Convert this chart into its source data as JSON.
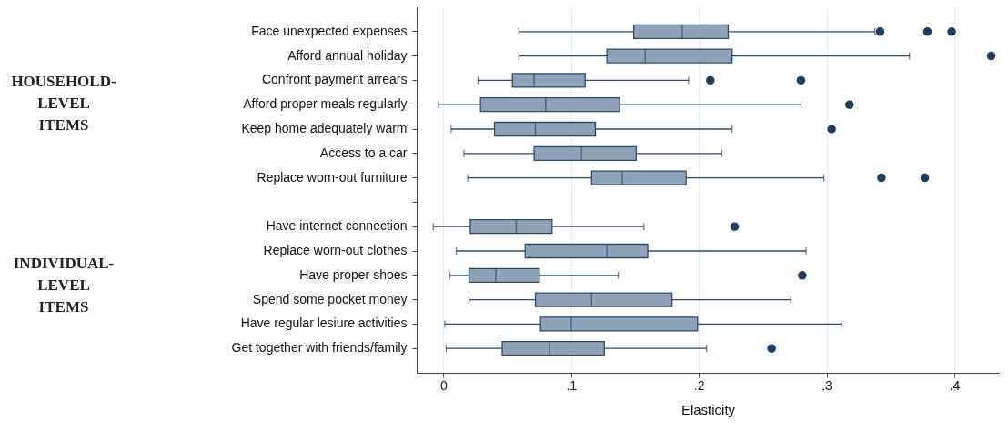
{
  "chart_data": {
    "type": "box",
    "xlabel": "Elasticity",
    "orientation": "horizontal",
    "categories": [
      "Face unexpected expenses",
      "Afford annual holiday",
      "Confront payment arrears",
      "Afford proper meals regularly",
      "Keep home adequately warm",
      "Access to a car",
      "Replace worn-out furniture",
      null,
      "Have internet connection",
      "Replace worn-out clothes",
      "Have proper shoes",
      "Spend some pocket money",
      "Have regular lesiure activities",
      "Get together with friends/family"
    ],
    "boxes": [
      {
        "low": 0.059,
        "q1": 0.149,
        "median": 0.187,
        "q3": 0.223,
        "high": 0.338,
        "outliers": [
          0.342,
          0.379,
          0.398
        ]
      },
      {
        "low": 0.059,
        "q1": 0.128,
        "median": 0.158,
        "q3": 0.226,
        "high": 0.365,
        "outliers": [
          0.429
        ]
      },
      {
        "low": 0.027,
        "q1": 0.054,
        "median": 0.071,
        "q3": 0.111,
        "high": 0.192,
        "outliers": [
          0.209,
          0.28
        ]
      },
      {
        "low": -0.004,
        "q1": 0.029,
        "median": 0.08,
        "q3": 0.138,
        "high": 0.28,
        "outliers": [
          0.318
        ]
      },
      {
        "low": 0.006,
        "q1": 0.04,
        "median": 0.072,
        "q3": 0.119,
        "high": 0.226,
        "outliers": [
          0.304
        ]
      },
      {
        "low": 0.016,
        "q1": 0.071,
        "median": 0.108,
        "q3": 0.151,
        "high": 0.218
      },
      {
        "low": 0.019,
        "q1": 0.116,
        "median": 0.14,
        "q3": 0.19,
        "high": 0.298,
        "outliers": [
          0.343,
          0.377
        ]
      },
      null,
      {
        "low": -0.008,
        "q1": 0.021,
        "median": 0.057,
        "q3": 0.085,
        "high": 0.157,
        "outliers": [
          0.228
        ]
      },
      {
        "low": 0.01,
        "q1": 0.064,
        "median": 0.128,
        "q3": 0.16,
        "high": 0.284
      },
      {
        "low": 0.005,
        "q1": 0.02,
        "median": 0.041,
        "q3": 0.075,
        "high": 0.137,
        "outliers": [
          0.281
        ]
      },
      {
        "low": 0.02,
        "q1": 0.072,
        "median": 0.116,
        "q3": 0.179,
        "high": 0.272
      },
      {
        "low": 0.001,
        "q1": 0.076,
        "median": 0.1,
        "q3": 0.199,
        "high": 0.312
      },
      {
        "low": 0.002,
        "q1": 0.046,
        "median": 0.083,
        "q3": 0.126,
        "high": 0.206,
        "outliers": [
          0.257
        ]
      }
    ],
    "xlim": [
      -0.021,
      0.435
    ],
    "xticks": [
      {
        "value": 0,
        "label": "0"
      },
      {
        "value": 0.1,
        "label": ".1"
      },
      {
        "value": 0.2,
        "label": ".2"
      },
      {
        "value": 0.3,
        "label": ".3"
      },
      {
        "value": 0.4,
        "label": ".4"
      }
    ],
    "grid": "x",
    "color": "#8fa3b8",
    "annotations": [
      "HOUSEHOLD-LEVEL ITEMS",
      "INDIVIDUAL-LEVEL ITEMS"
    ]
  }
}
